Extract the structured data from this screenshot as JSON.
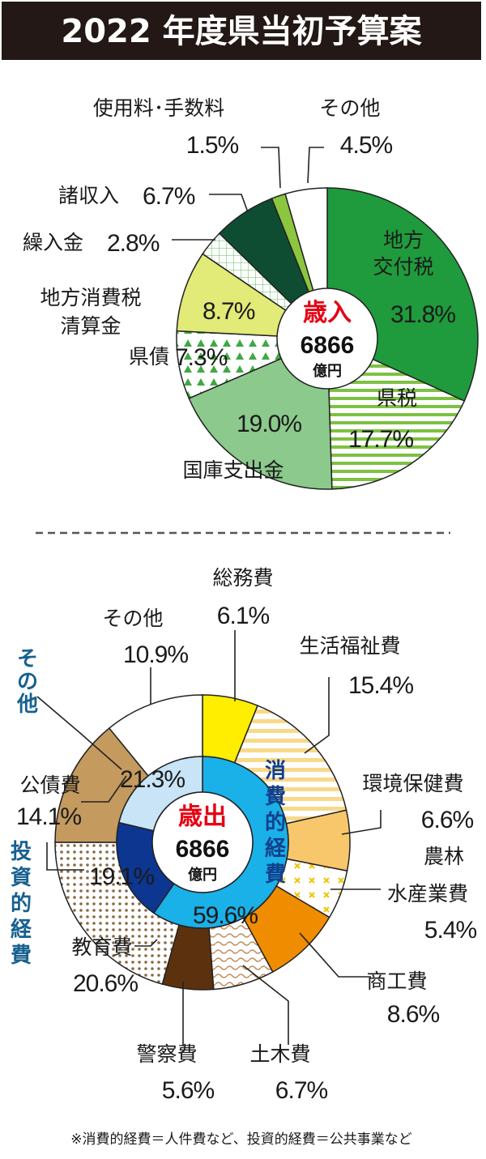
{
  "title": "2022 年度県当初予算案",
  "chart_data": [
    {
      "type": "pie",
      "title": "歳入",
      "total_value": "6866",
      "total_unit": "億円",
      "slices": [
        {
          "name": "地方交付税",
          "value": 31.8,
          "pct_label": "31.8%",
          "color": "#1f9a3c"
        },
        {
          "name": "県税",
          "value": 17.7,
          "pct_label": "17.7%",
          "color": "#ffffff"
        },
        {
          "name": "国庫支出金",
          "value": 19.0,
          "pct_label": "19.0%",
          "color": "#8cc98c"
        },
        {
          "name": "県債",
          "value": 7.3,
          "pct_label": "7.3%",
          "color": "#ffffff"
        },
        {
          "name": "地方消費税清算金",
          "value": 8.7,
          "pct_label": "8.7%",
          "color": "#e2ea78"
        },
        {
          "name": "繰入金",
          "value": 2.8,
          "pct_label": "2.8%",
          "color": "#ffffff"
        },
        {
          "name": "諸収入",
          "value": 6.7,
          "pct_label": "6.7%",
          "color": "#0e4d32"
        },
        {
          "name": "使用料・手数料",
          "value": 1.5,
          "pct_label": "1.5%",
          "color": "#8cc63f"
        },
        {
          "name": "その他",
          "value": 4.5,
          "pct_label": "4.5%",
          "color": "#ffffff"
        }
      ],
      "labels": {
        "chiho_l1": "地方",
        "chiho_l2": "交付税",
        "kenzei": "県税",
        "kokko": "国庫支出金",
        "kensai": "県債",
        "shohi_l1": "地方消費税",
        "shohi_l2": "清算金",
        "kurire": "繰入金",
        "sho": "諸収入",
        "shiyo": "使用料･手数料",
        "sonota": "その他"
      }
    },
    {
      "type": "donut",
      "title": "歳出",
      "total_value": "6866",
      "total_unit": "億円",
      "slices": [
        {
          "name": "総務費",
          "value": 6.1,
          "pct_label": "6.1%",
          "color": "#ffee00"
        },
        {
          "name": "生活福祉費",
          "value": 15.4,
          "pct_label": "15.4%",
          "color": "#ffffff"
        },
        {
          "name": "環境保健費",
          "value": 6.6,
          "pct_label": "6.6%",
          "color": "#f8c76b"
        },
        {
          "name": "農林水産業費",
          "value": 5.4,
          "pct_label": "5.4%",
          "color": "#ffffff"
        },
        {
          "name": "商工費",
          "value": 8.6,
          "pct_label": "8.6%",
          "color": "#f08c00"
        },
        {
          "name": "土木費",
          "value": 6.7,
          "pct_label": "6.7%",
          "color": "#ffffff"
        },
        {
          "name": "警察費",
          "value": 5.6,
          "pct_label": "5.6%",
          "color": "#5c320e"
        },
        {
          "name": "教育費",
          "value": 20.6,
          "pct_label": "20.6%",
          "color": "#ffffff"
        },
        {
          "name": "公債費",
          "value": 14.1,
          "pct_label": "14.1%",
          "color": "#c49a5e"
        },
        {
          "name": "その他",
          "value": 10.9,
          "pct_label": "10.9%",
          "color": "#ffffff"
        }
      ],
      "groups": [
        {
          "name": "消費的経費",
          "value": 59.6,
          "pct_label": "59.6%",
          "color": "#1ab0e8"
        },
        {
          "name": "投資的経費",
          "value": 19.1,
          "pct_label": "19.1%",
          "color": "#0c3690"
        },
        {
          "name": "その他",
          "value": 21.3,
          "pct_label": "21.3%",
          "color": "#c8e4f6"
        }
      ],
      "labels": {
        "somu": "総務費",
        "seikatsu": "生活福祉費",
        "kankyo": "環境保健費",
        "norin_l1": "農林",
        "norin_l2": "水産業費",
        "shoko": "商工費",
        "doboku": "土木費",
        "keisatsu": "警察費",
        "kyoiku": "教育費",
        "kosai": "公債費",
        "sonota": "その他",
        "grp_shohi": "消費的経費",
        "grp_toshi": "投資的経費",
        "grp_sonota": "その他"
      }
    }
  ],
  "footer": "※消費的経費＝人件費など、投資的経費＝公共事業など"
}
